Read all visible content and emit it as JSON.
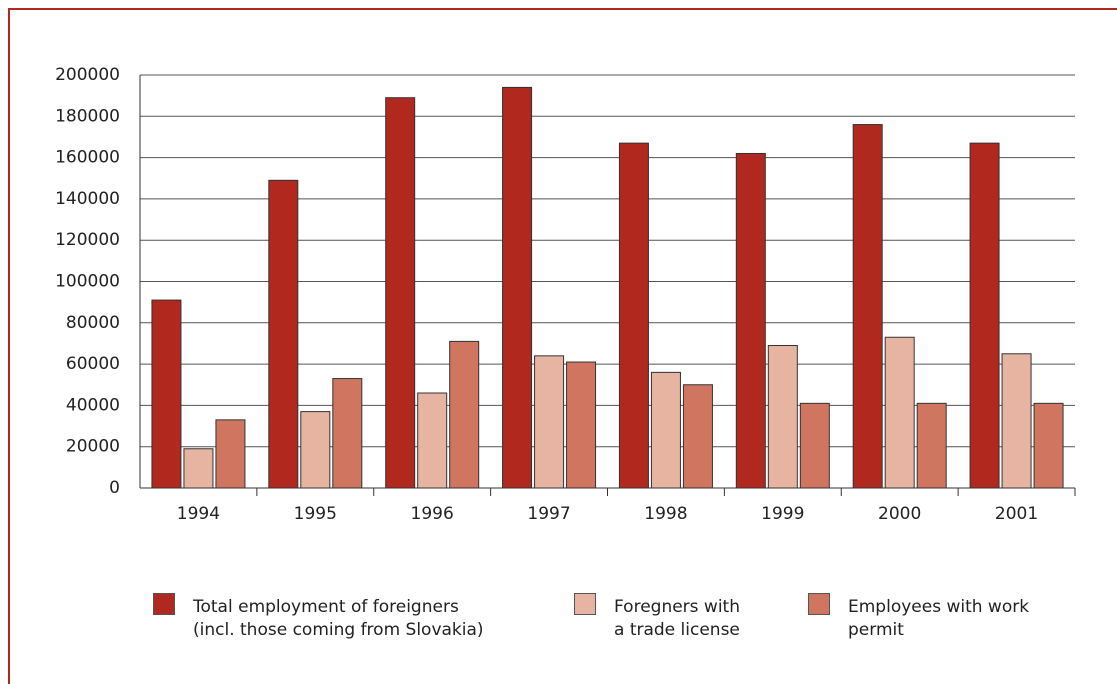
{
  "chart_data": {
    "type": "bar",
    "categories": [
      "1994",
      "1995",
      "1996",
      "1997",
      "1998",
      "1999",
      "2000",
      "2001"
    ],
    "series": [
      {
        "name": "Total employment of foreigners\n(incl. those coming from Slovakia)",
        "color": "#b0281e",
        "values": [
          91000,
          149000,
          189000,
          194000,
          167000,
          162000,
          176000,
          167000
        ]
      },
      {
        "name": "Foregners with\na trade license",
        "color": "#e8b4a2",
        "values": [
          19000,
          37000,
          46000,
          64000,
          56000,
          69000,
          73000,
          65000
        ]
      },
      {
        "name": "Employees with work\npermit",
        "color": "#cf7560",
        "values": [
          33000,
          53000,
          71000,
          61000,
          50000,
          41000,
          41000,
          41000
        ]
      }
    ],
    "ylim": [
      0,
      200000
    ],
    "yticks": [
      0,
      20000,
      40000,
      60000,
      80000,
      100000,
      120000,
      140000,
      160000,
      180000,
      200000
    ],
    "grid": true
  }
}
